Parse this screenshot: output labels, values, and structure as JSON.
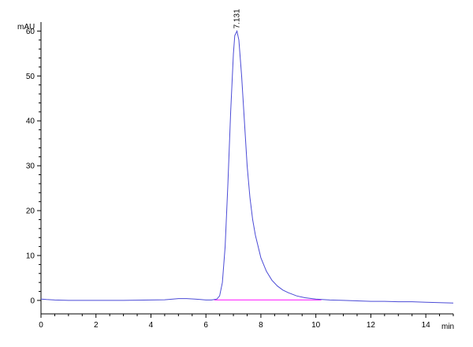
{
  "chart_data": {
    "type": "line",
    "title": "",
    "xlabel": "min",
    "ylabel": "mAU",
    "xlim": [
      0,
      15
    ],
    "ylim": [
      -3,
      62
    ],
    "x_ticks": [
      "0",
      "2",
      "4",
      "6",
      "8",
      "10",
      "12",
      "14"
    ],
    "y_ticks": [
      "0",
      "10",
      "20",
      "30",
      "40",
      "50",
      "60"
    ],
    "grid": false,
    "legend": "none",
    "peak_label": "7.131",
    "baseline": {
      "name": "",
      "x": [
        6.3,
        10.2
      ],
      "values": [
        0.1,
        0.1
      ]
    },
    "series": [
      {
        "name": "",
        "x": [
          0,
          0.2,
          0.5,
          1,
          1.5,
          2,
          2.5,
          3,
          3.5,
          4,
          4.5,
          4.8,
          5,
          5.3,
          5.6,
          5.8,
          6,
          6.2,
          6.4,
          6.5,
          6.6,
          6.7,
          6.8,
          6.9,
          7.0,
          7.05,
          7.131,
          7.2,
          7.3,
          7.4,
          7.5,
          7.6,
          7.7,
          7.8,
          8.0,
          8.2,
          8.4,
          8.6,
          8.8,
          9.0,
          9.3,
          9.6,
          10.0,
          10.5,
          11,
          11.5,
          12,
          12.5,
          13,
          13.5,
          14,
          14.5,
          15
        ],
        "values": [
          0.3,
          0.2,
          0.1,
          0,
          0,
          0,
          0,
          0,
          0.05,
          0.1,
          0.15,
          0.3,
          0.4,
          0.4,
          0.3,
          0.2,
          0.1,
          0.1,
          0.3,
          1,
          4,
          12,
          26,
          42,
          55,
          59,
          60,
          58,
          50,
          40,
          30,
          23,
          18,
          14.5,
          9.5,
          6.5,
          4.5,
          3.2,
          2.3,
          1.7,
          1.0,
          0.6,
          0.3,
          0.1,
          0,
          -0.1,
          -0.2,
          -0.2,
          -0.3,
          -0.3,
          -0.4,
          -0.5,
          -0.6
        ]
      }
    ],
    "colors": {
      "trace": "#4b4bd6",
      "baseline": "#ff40ff",
      "axis": "#000000"
    }
  }
}
